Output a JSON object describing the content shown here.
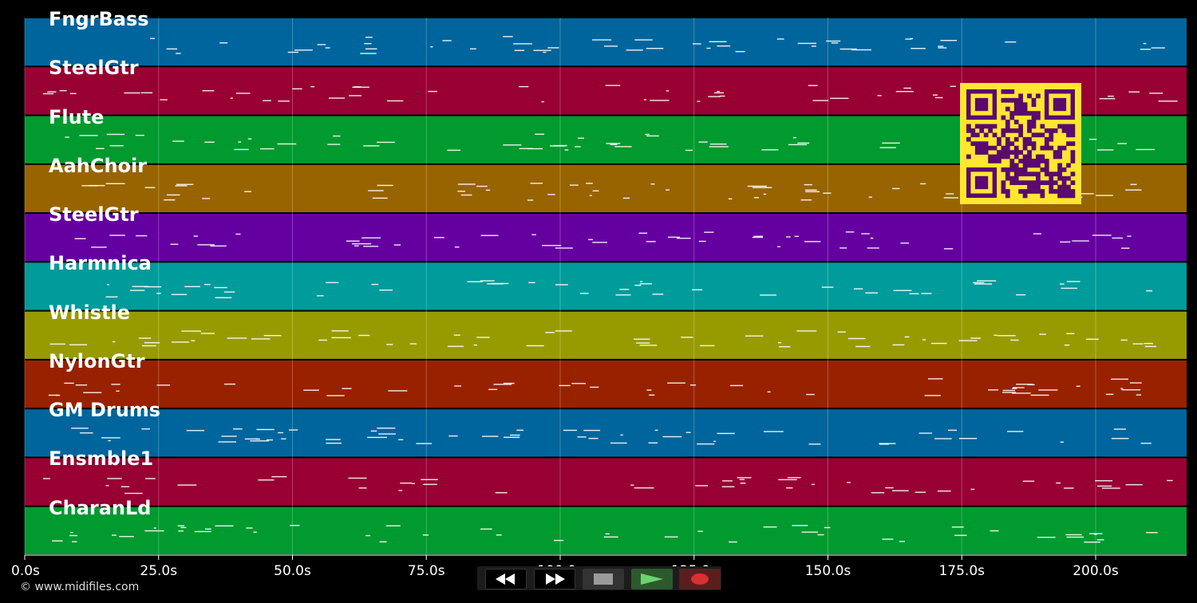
{
  "credit": "© www.midifiles.com",
  "axis": {
    "ticks": [
      {
        "label": "0.0s",
        "t": 0
      },
      {
        "label": "25.0s",
        "t": 25
      },
      {
        "label": "50.0s",
        "t": 50
      },
      {
        "label": "75.0s",
        "t": 75
      },
      {
        "label": "100.0s",
        "t": 100
      },
      {
        "label": "125.0s",
        "t": 125
      },
      {
        "label": "150.0s",
        "t": 150
      },
      {
        "label": "175.0s",
        "t": 175
      },
      {
        "label": "200.0s",
        "t": 200
      }
    ],
    "max_seconds": 217
  },
  "tracks": [
    {
      "name": "FngrBass",
      "color": "#00659c"
    },
    {
      "name": "SteelGtr",
      "color": "#980033"
    },
    {
      "name": "Flute",
      "color": "#009a2e"
    },
    {
      "name": "AahChoir",
      "color": "#986400"
    },
    {
      "name": "SteelGtr",
      "color": "#6500a0"
    },
    {
      "name": "Harmnica",
      "color": "#009b9b"
    },
    {
      "name": "Whistle",
      "color": "#989b00"
    },
    {
      "name": "NylonGtr",
      "color": "#982200"
    },
    {
      "name": "GM Drums",
      "color": "#00659c"
    },
    {
      "name": "Ensmble1",
      "color": "#980033"
    },
    {
      "name": "CharanLd",
      "color": "#009a2e"
    }
  ],
  "transport": {
    "rewind": "rewind-icon",
    "fast_forward": "fast-forward-icon",
    "stop": "stop-icon",
    "play": "play-icon",
    "record": "record-icon"
  },
  "qr_code": "qr-code"
}
